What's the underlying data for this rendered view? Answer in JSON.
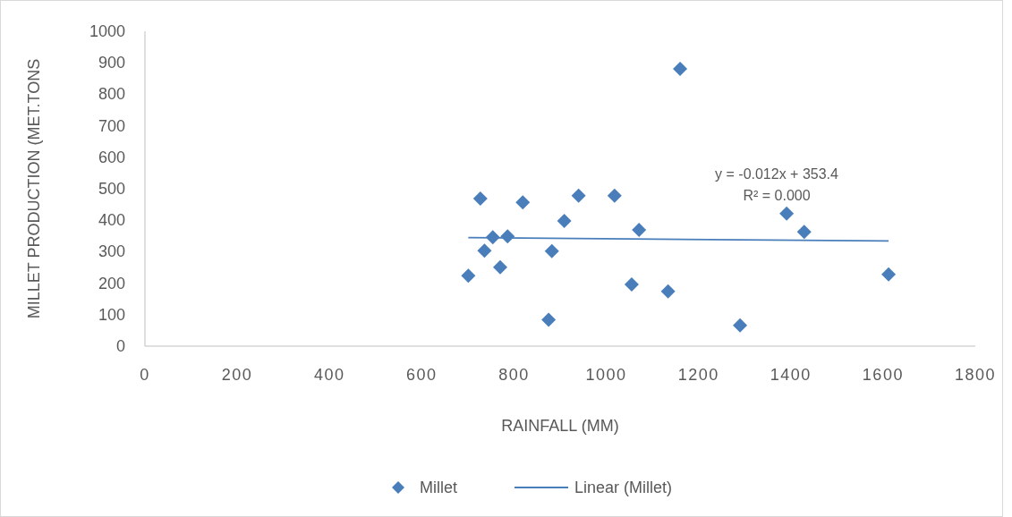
{
  "chart_data": {
    "type": "scatter",
    "xlabel": "RAINFALL (MM)",
    "ylabel": "MILLET PRODUCTION (MET.TONS",
    "xlim": [
      0,
      1800
    ],
    "xticks": [
      0,
      200,
      400,
      600,
      800,
      1000,
      1200,
      1400,
      1600,
      1800
    ],
    "ylim": [
      0,
      1000
    ],
    "yticks": [
      0,
      100,
      200,
      300,
      400,
      500,
      600,
      700,
      800,
      900,
      1000
    ],
    "grid": false,
    "legend": "bottom",
    "series": [
      {
        "name": "Millet",
        "marker": "diamond",
        "color": "#4a7ebb",
        "x": [
          701,
          727,
          736,
          754,
          770,
          786,
          819,
          875,
          882,
          909,
          940,
          1018,
          1055,
          1071,
          1134,
          1160,
          1290,
          1391,
          1429,
          1612
        ],
        "values": [
          224,
          469,
          303,
          346,
          251,
          349,
          457,
          84,
          302,
          398,
          478,
          478,
          196,
          369,
          174,
          881,
          66,
          421,
          363,
          228
        ]
      },
      {
        "name": "Linear (Millet)",
        "type": "line",
        "color": "#4a7ebb",
        "line_style": "solid",
        "x": [
          701,
          1612
        ],
        "values": [
          345,
          334
        ]
      }
    ],
    "annotations": [
      "y = -0.012x + 353.4",
      "R² = 0.000"
    ]
  }
}
